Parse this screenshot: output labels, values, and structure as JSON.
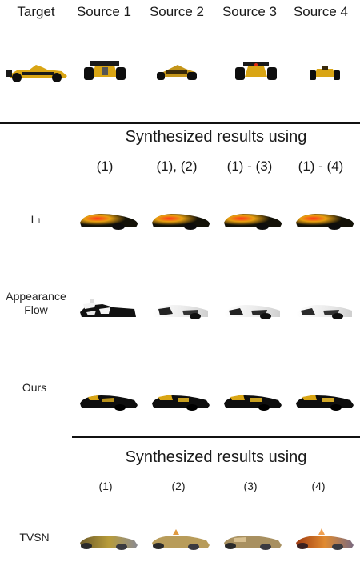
{
  "header": {
    "target": "Target",
    "sources": [
      "Source 1",
      "Source 2",
      "Source 3",
      "Source 4"
    ]
  },
  "section1": {
    "title": "Synthesized results using",
    "columns": [
      "(1)",
      "(1), (2)",
      "(1) - (3)",
      "(1) - (4)"
    ],
    "rows": [
      {
        "label": "L",
        "sub": "1"
      },
      {
        "label_lines": [
          "Appearance",
          "Flow"
        ]
      },
      {
        "label": "Ours"
      }
    ]
  },
  "section2": {
    "title": "Synthesized results using",
    "columns": [
      "(1)",
      "(2)",
      "(3)",
      "(4)"
    ],
    "rows": [
      {
        "label": "TVSN"
      }
    ]
  },
  "colors": {
    "car_yellow": "#d9a514",
    "car_black": "#0e0e0e",
    "flow_white": "#f4f4f4",
    "l1_red": "#e02a10"
  }
}
